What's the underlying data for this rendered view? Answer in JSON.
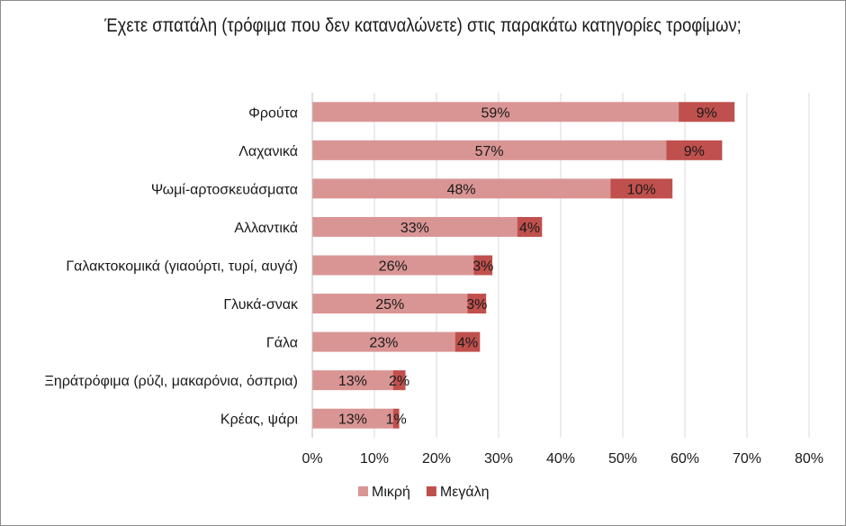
{
  "chart_data": {
    "type": "bar",
    "orientation": "horizontal",
    "stacked": true,
    "title": "Έχετε σπατάλη (τρόφιμα που δεν καταναλώνετε) στις παρακάτω κατηγορίες τροφίμων;",
    "categories": [
      "Φρούτα",
      "Λαχανικά",
      "Ψωμί-αρτοσκευάσματα",
      "Αλλαντικά",
      "Γαλακτοκομικά (γιαούρτι, τυρί, αυγά)",
      "Γλυκά-σνακ",
      "Γάλα",
      "Ξηράτρόφιμα (ρύζι, μακαρόνια, όσπρια)",
      "Κρέας, ψάρι"
    ],
    "series": [
      {
        "name": "Μικρή",
        "color": "#d99594",
        "values": [
          59,
          57,
          48,
          33,
          26,
          25,
          23,
          13,
          13
        ],
        "labels": [
          "59%",
          "57%",
          "48%",
          "33%",
          "26%",
          "25%",
          "23%",
          "13%",
          "13%"
        ]
      },
      {
        "name": "Μεγάλη",
        "color": "#c0504d",
        "values": [
          9,
          9,
          10,
          4,
          3,
          3,
          4,
          2,
          1
        ],
        "labels": [
          "9%",
          "9%",
          "10%",
          "4%",
          "3%",
          "3%",
          "4%",
          "2%",
          "1%"
        ]
      }
    ],
    "xlim": [
      0,
      80
    ],
    "x_ticks": [
      0,
      10,
      20,
      30,
      40,
      50,
      60,
      70,
      80
    ],
    "x_tick_labels": [
      "0%",
      "10%",
      "20%",
      "30%",
      "40%",
      "50%",
      "60%",
      "70%",
      "80%"
    ],
    "grid": "vertical",
    "legend_position": "bottom"
  }
}
